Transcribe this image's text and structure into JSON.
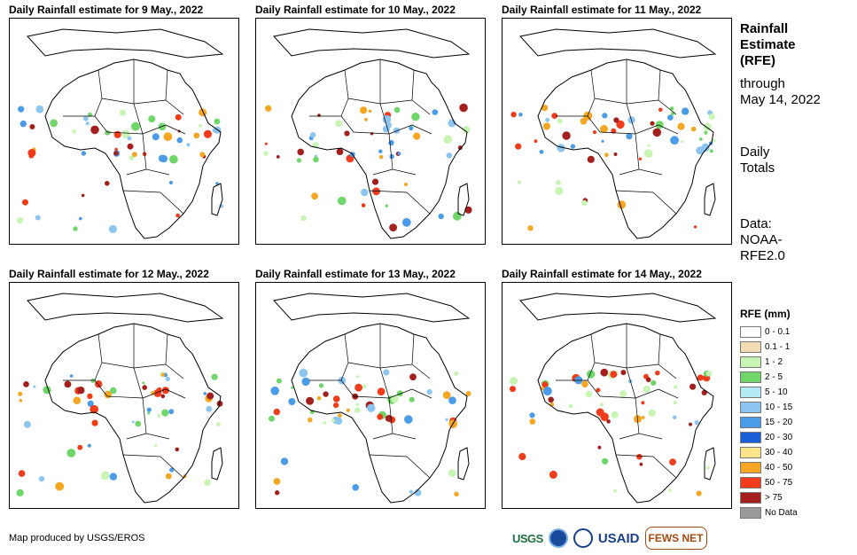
{
  "panels": [
    {
      "title": "Daily Rainfall estimate for 9 May., 2022"
    },
    {
      "title": "Daily Rainfall estimate for 10 May., 2022"
    },
    {
      "title": "Daily Rainfall estimate for 11 May., 2022"
    },
    {
      "title": "Daily Rainfall estimate for 12 May., 2022"
    },
    {
      "title": "Daily Rainfall estimate for 13 May., 2022"
    },
    {
      "title": "Daily Rainfall estimate for 14 May., 2022"
    }
  ],
  "side": {
    "title_line1": "Rainfall",
    "title_line2": "Estimate",
    "title_line3": "(RFE)",
    "through_line1": "through",
    "through_line2": "May 14, 2022",
    "daily_line1": "Daily",
    "daily_line2": "Totals",
    "data_line1": "Data:",
    "data_line2": "NOAA-",
    "data_line3": "RFE2.0"
  },
  "legend": {
    "title": "RFE (mm)",
    "items": [
      {
        "label": "0 - 0.1",
        "color": "#ffffff"
      },
      {
        "label": "0.1 - 1",
        "color": "#f2dcb5"
      },
      {
        "label": "1 - 2",
        "color": "#c8f5b4"
      },
      {
        "label": "2 - 5",
        "color": "#6fd66a"
      },
      {
        "label": "5 - 10",
        "color": "#b4ecf5"
      },
      {
        "label": "10 - 15",
        "color": "#8cc6f0"
      },
      {
        "label": "15 - 20",
        "color": "#4a9be8"
      },
      {
        "label": "20 - 30",
        "color": "#1a5fd6"
      },
      {
        "label": "30 - 40",
        "color": "#fbe58a"
      },
      {
        "label": "40 - 50",
        "color": "#f5a623"
      },
      {
        "label": "50 - 75",
        "color": "#f03c1a"
      },
      {
        "label": "> 75",
        "color": "#a3201e"
      },
      {
        "label": "No Data",
        "color": "#999999"
      }
    ]
  },
  "footer": {
    "credit": "Map produced by USGS/EROS"
  },
  "logos": {
    "usgs": "USGS",
    "usaid": "USAID",
    "fews": "FEWS NET"
  }
}
